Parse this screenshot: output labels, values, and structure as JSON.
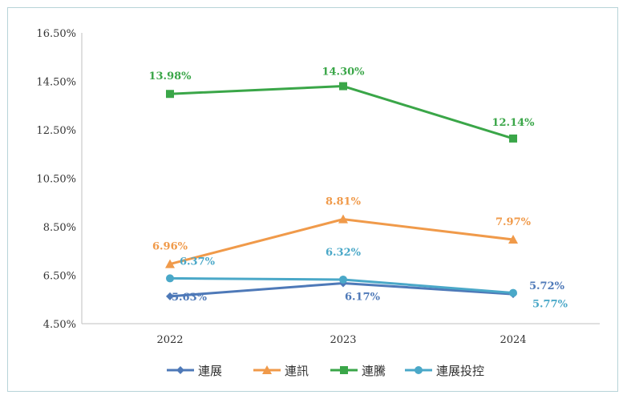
{
  "chart_data": {
    "type": "line",
    "categories": [
      "2022",
      "2023",
      "2024"
    ],
    "ylim": [
      4.5,
      16.5
    ],
    "yticks": [
      "16.50%",
      "14.50%",
      "12.50%",
      "10.50%",
      "8.50%",
      "6.50%",
      "4.50%"
    ],
    "ytick_values": [
      16.5,
      14.5,
      12.5,
      10.5,
      8.5,
      6.5,
      4.5
    ],
    "series": [
      {
        "name": "連展",
        "color": "#4e79b8",
        "marker": "diamond",
        "values": [
          5.63,
          6.17,
          5.72
        ],
        "labels": [
          "5.63%",
          "6.17%",
          "5.72%"
        ]
      },
      {
        "name": "連訊",
        "color": "#f09a4a",
        "marker": "triangle",
        "values": [
          6.96,
          8.81,
          7.97
        ],
        "labels": [
          "6.96%",
          "8.81%",
          "7.97%"
        ]
      },
      {
        "name": "連騰",
        "color": "#3aa648",
        "marker": "square",
        "values": [
          13.98,
          14.3,
          12.14
        ],
        "labels": [
          "13.98%",
          "14.30%",
          "12.14%"
        ]
      },
      {
        "name": "連展投控",
        "color": "#4aa8c8",
        "marker": "circle",
        "values": [
          6.37,
          6.32,
          5.77
        ],
        "labels": [
          "6.37%",
          "6.32%",
          "5.77%"
        ]
      }
    ]
  }
}
